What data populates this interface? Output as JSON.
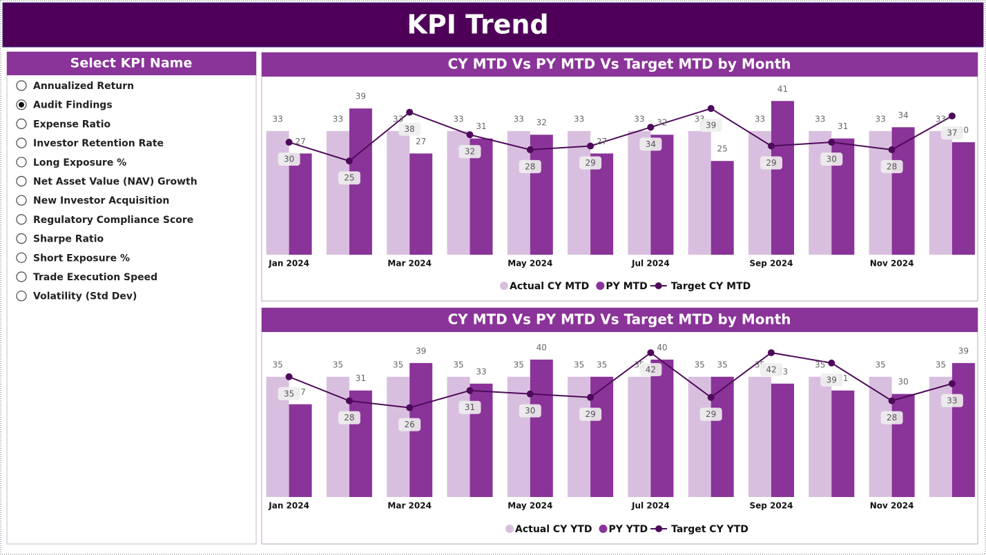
{
  "header": {
    "title": "KPI Trend"
  },
  "slicer": {
    "title": "Select KPI Name",
    "options": [
      "Annualized Return",
      "Audit Findings",
      "Expense Ratio",
      "Investor Retention Rate",
      "Long Exposure %",
      "Net Asset Value (NAV) Growth",
      "New Investor Acquisition",
      "Regulatory Compliance Score",
      "Sharpe Ratio",
      "Short Exposure %",
      "Trade Execution Speed",
      "Volatility (Std Dev)"
    ],
    "selected": 1
  },
  "chart_data": [
    {
      "type": "bar",
      "title": "CY MTD Vs PY MTD Vs Target MTD by Month",
      "categories": [
        "Jan 2024",
        null,
        "Mar 2024",
        null,
        "May 2024",
        null,
        "Jul 2024",
        null,
        "Sep 2024",
        null,
        "Nov 2024",
        null
      ],
      "ylim": [
        0,
        44
      ],
      "series": [
        {
          "name": "Actual CY MTD",
          "type": "bar",
          "color": "#d9bfdf",
          "values": [
            33,
            33,
            33,
            33,
            33,
            33,
            33,
            33,
            33,
            33,
            33,
            33
          ]
        },
        {
          "name": "PY MTD",
          "type": "bar",
          "color": "#8a3399",
          "values": [
            27,
            39,
            27,
            31,
            32,
            27,
            32,
            25,
            41,
            31,
            34,
            30
          ]
        },
        {
          "name": "Target CY MTD",
          "type": "line",
          "color": "#4e0a5a",
          "values": [
            30,
            25,
            38,
            32,
            28,
            29,
            34,
            39,
            29,
            30,
            28,
            37
          ]
        }
      ]
    },
    {
      "type": "bar",
      "title": "CY MTD Vs PY MTD Vs Target MTD by Month",
      "categories": [
        "Jan 2024",
        null,
        "Mar 2024",
        null,
        "May 2024",
        null,
        "Jul 2024",
        null,
        "Sep 2024",
        null,
        "Nov 2024",
        null
      ],
      "ylim": [
        0,
        44
      ],
      "series": [
        {
          "name": "Actual CY YTD",
          "type": "bar",
          "color": "#d9bfdf",
          "values": [
            35,
            35,
            35,
            35,
            35,
            35,
            35,
            35,
            35,
            35,
            35,
            35
          ]
        },
        {
          "name": "PY YTD",
          "type": "bar",
          "color": "#8a3399",
          "values": [
            27,
            31,
            39,
            33,
            40,
            35,
            40,
            35,
            33,
            31,
            30,
            39
          ]
        },
        {
          "name": "Target CY YTD",
          "type": "line",
          "color": "#4e0a5a",
          "values": [
            35,
            28,
            26,
            31,
            30,
            29,
            42,
            29,
            42,
            39,
            28,
            33
          ]
        }
      ]
    }
  ]
}
